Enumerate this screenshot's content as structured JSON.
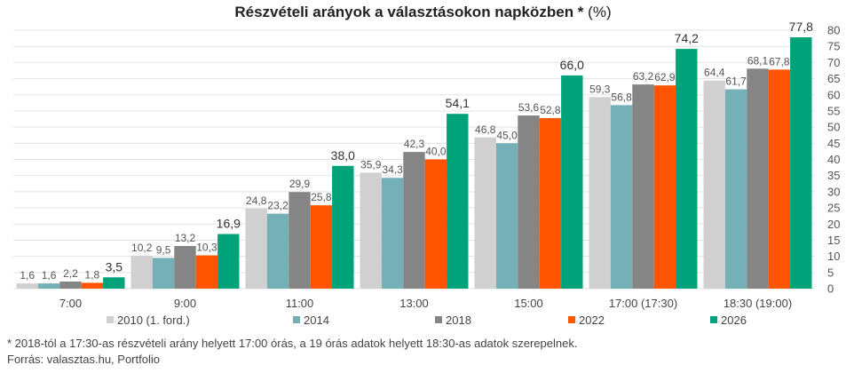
{
  "chart_data": {
    "type": "bar",
    "title": "Részvételi arányok a választásokon napközben *",
    "title_unit": "(%)",
    "categories": [
      "7:00",
      "9:00",
      "11:00",
      "13:00",
      "15:00",
      "17:00 (17:30)",
      "18:30 (19:00)"
    ],
    "series": [
      {
        "name": "2010 (1. ford.)",
        "color": "#d0d0d0",
        "values": [
          1.6,
          10.2,
          24.8,
          35.9,
          46.8,
          59.3,
          64.4
        ],
        "labels": [
          "1,6",
          "10,2",
          "24,8",
          "35,9",
          "46,8",
          "59,3",
          "64,4"
        ]
      },
      {
        "name": "2014",
        "color": "#74b0b6",
        "values": [
          1.6,
          9.5,
          23.2,
          34.3,
          45.0,
          56.8,
          61.7
        ],
        "labels": [
          "1,6",
          "9,5",
          "23,2",
          "34,3",
          "45,0",
          "56,8",
          "61,7"
        ]
      },
      {
        "name": "2018",
        "color": "#858585",
        "values": [
          2.2,
          13.2,
          29.9,
          42.3,
          53.6,
          63.2,
          68.1
        ],
        "labels": [
          "2,2",
          "13,2",
          "29,9",
          "42,3",
          "53,6",
          "63,2",
          "68,1"
        ]
      },
      {
        "name": "2022",
        "color": "#ff5500",
        "values": [
          1.8,
          10.3,
          25.8,
          40.0,
          52.8,
          62.9,
          67.8
        ],
        "labels": [
          "1,8",
          "10,3",
          "25,8",
          "40,0",
          "52,8",
          "62,9",
          "67,8"
        ]
      },
      {
        "name": "2026",
        "color": "#00a27a",
        "values": [
          3.5,
          16.9,
          38.0,
          54.1,
          66.0,
          74.2,
          77.8
        ],
        "labels": [
          "3,5",
          "16,9",
          "38,0",
          "54,1",
          "66,0",
          "74,2",
          "77,8"
        ]
      }
    ],
    "ylim": [
      0,
      80
    ],
    "yticks": [
      0,
      5,
      10,
      15,
      20,
      25,
      30,
      35,
      40,
      45,
      50,
      55,
      60,
      65,
      70,
      75,
      80
    ],
    "y_axis_side": "right",
    "grid": true,
    "legend_position": "bottom"
  },
  "footnote": {
    "line1": "* 2018-tól a 17:30-as részvételi arány helyett 17:00 órás, a 19 órás adatok helyett 18:30-as adatok szerepelnek.",
    "line2": "Forrás: valasztas.hu, Portfolio"
  }
}
